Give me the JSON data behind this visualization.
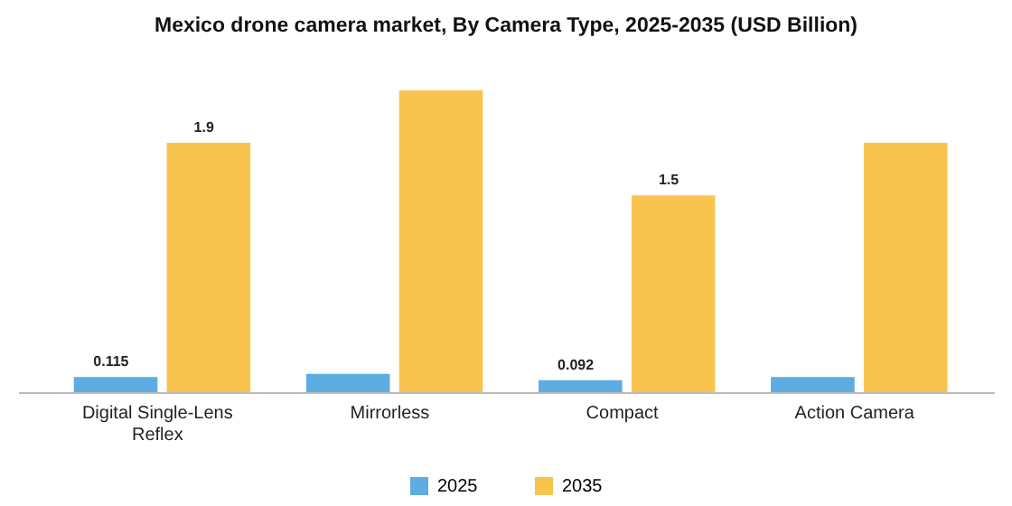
{
  "chart_data": {
    "type": "bar",
    "title": "Mexico drone camera market, By Camera Type, 2025-2035 (USD Billion)",
    "categories": [
      "Digital Single-Lens Reflex",
      "Mirrorless",
      "Compact",
      "Action Camera"
    ],
    "series": [
      {
        "name": "2025",
        "color": "#5dade2",
        "values": [
          0.115,
          0.14,
          0.092,
          0.115
        ],
        "value_labels": [
          "0.115",
          null,
          "0.092",
          null
        ]
      },
      {
        "name": "2035",
        "color": "#f9c44e",
        "values": [
          1.9,
          2.3,
          1.5,
          1.9
        ],
        "value_labels": [
          "1.9",
          null,
          "1.5",
          null
        ]
      }
    ],
    "legend": "bottom"
  }
}
